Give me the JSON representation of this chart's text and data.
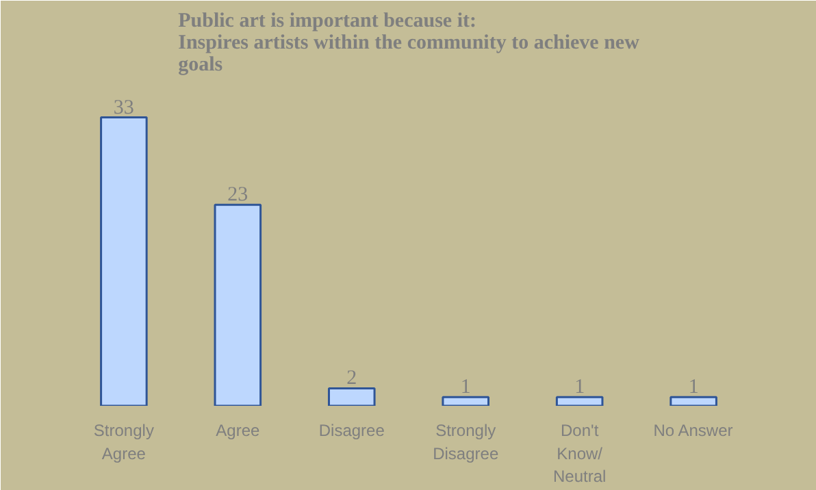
{
  "chart_data": {
    "type": "bar",
    "title": "Public art is important because it:\nInspires artists within the community to achieve new goals",
    "categories": [
      "Strongly Agree",
      "Agree",
      "Disagree",
      "Strongly Disagree",
      "Don't Know/ Neutral",
      "No Answer"
    ],
    "values": [
      33,
      23,
      2,
      1,
      1,
      1
    ],
    "color": "#bdd7fe",
    "data_labels": true
  }
}
